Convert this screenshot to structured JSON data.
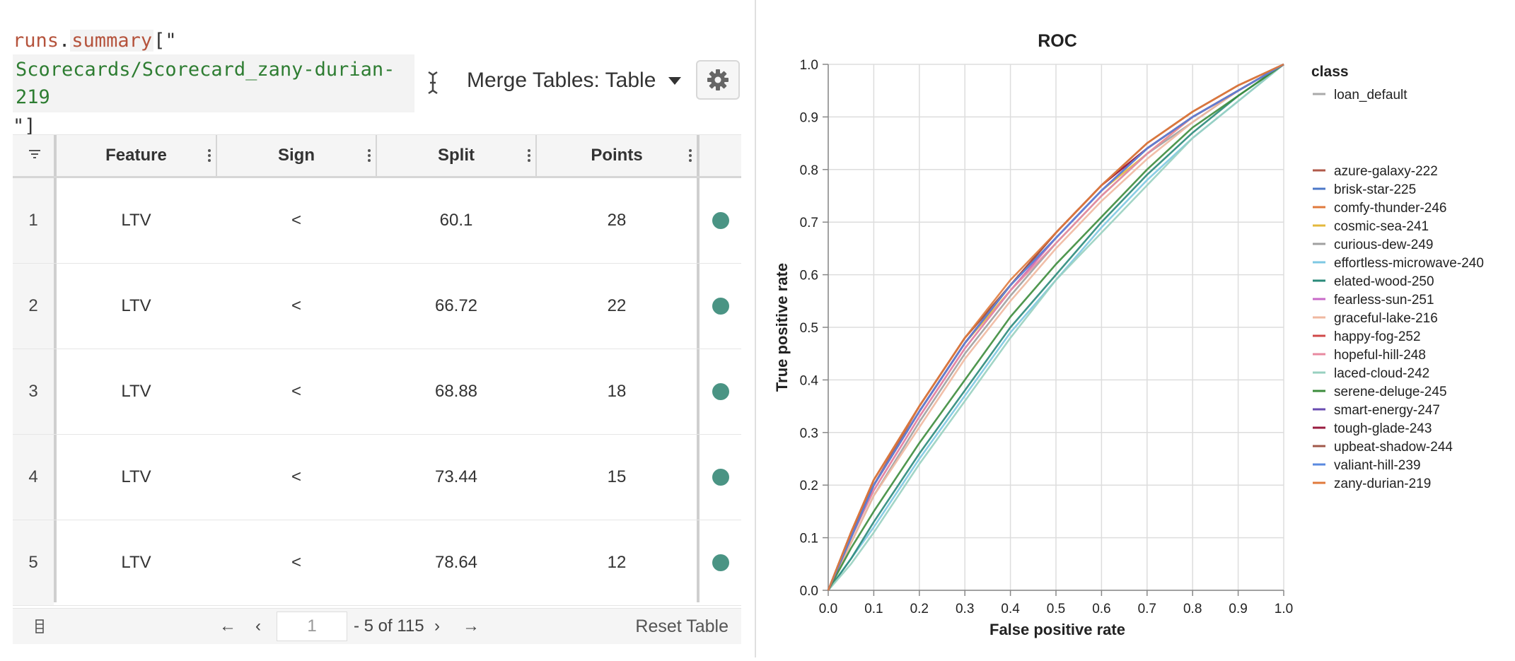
{
  "query": {
    "prefix": "runs",
    "dot": ".",
    "attr": "summary",
    "open": "[\"",
    "key": "Scorecards/Scorecard_zany-durian-219",
    "close": "\"]"
  },
  "merge": {
    "label": "Merge Tables: Table"
  },
  "icons": {
    "settings": "gear-icon",
    "cursor": "text-cursor-icon",
    "filter": "filter-icon",
    "columns": "columns-icon"
  },
  "colors": {
    "dot": "#4a9484"
  },
  "table": {
    "headers": [
      "Feature",
      "Sign",
      "Split",
      "Points"
    ],
    "rows": [
      {
        "index": "1",
        "feature": "LTV",
        "sign": "<",
        "split": "60.1",
        "points": "28"
      },
      {
        "index": "2",
        "feature": "LTV",
        "sign": "<",
        "split": "66.72",
        "points": "22"
      },
      {
        "index": "3",
        "feature": "LTV",
        "sign": "<",
        "split": "68.88",
        "points": "18"
      },
      {
        "index": "4",
        "feature": "LTV",
        "sign": "<",
        "split": "73.44",
        "points": "15"
      },
      {
        "index": "5",
        "feature": "LTV",
        "sign": "<",
        "split": "78.64",
        "points": "12"
      }
    ]
  },
  "pagination": {
    "first": "←",
    "prev": "‹",
    "page": "1",
    "range": "- 5 of 115",
    "next": "›",
    "last": "→",
    "reset": "Reset Table"
  },
  "chart_data": {
    "type": "line",
    "title": "ROC",
    "xlabel": "False positive rate",
    "ylabel": "True positive rate",
    "xlim": [
      0,
      1
    ],
    "ylim": [
      0,
      1
    ],
    "xticks": [
      "0.0",
      "0.1",
      "0.2",
      "0.3",
      "0.4",
      "0.5",
      "0.6",
      "0.7",
      "0.8",
      "0.9",
      "1.0"
    ],
    "yticks": [
      "0.0",
      "0.1",
      "0.2",
      "0.3",
      "0.4",
      "0.5",
      "0.6",
      "0.7",
      "0.8",
      "0.9",
      "1.0"
    ],
    "grid": true,
    "legend_position": "right",
    "legend_group_title": "class",
    "class_entry": {
      "name": "loan_default",
      "color": "#aaaaaa"
    },
    "series": [
      {
        "name": "azure-galaxy-222",
        "color": "#b05a4a",
        "x": [
          0,
          0.05,
          0.1,
          0.2,
          0.3,
          0.4,
          0.5,
          0.6,
          0.7,
          0.8,
          0.9,
          1.0
        ],
        "y": [
          0,
          0.11,
          0.2,
          0.35,
          0.48,
          0.58,
          0.68,
          0.77,
          0.84,
          0.9,
          0.95,
          1.0
        ]
      },
      {
        "name": "brisk-star-225",
        "color": "#4c78c8",
        "x": [
          0,
          0.05,
          0.1,
          0.2,
          0.3,
          0.4,
          0.5,
          0.6,
          0.7,
          0.8,
          0.9,
          1.0
        ],
        "y": [
          0,
          0.1,
          0.2,
          0.34,
          0.47,
          0.58,
          0.67,
          0.76,
          0.84,
          0.9,
          0.95,
          1.0
        ]
      },
      {
        "name": "comfy-thunder-246",
        "color": "#e07a3c",
        "x": [
          0,
          0.05,
          0.1,
          0.2,
          0.3,
          0.4,
          0.5,
          0.6,
          0.7,
          0.8,
          0.9,
          1.0
        ],
        "y": [
          0,
          0.11,
          0.21,
          0.35,
          0.48,
          0.58,
          0.68,
          0.77,
          0.85,
          0.91,
          0.96,
          1.0
        ]
      },
      {
        "name": "cosmic-sea-241",
        "color": "#e3b83c",
        "x": [
          0,
          0.05,
          0.1,
          0.2,
          0.3,
          0.4,
          0.5,
          0.6,
          0.7,
          0.8,
          0.9,
          1.0
        ],
        "y": [
          0,
          0.1,
          0.2,
          0.34,
          0.47,
          0.57,
          0.67,
          0.76,
          0.83,
          0.9,
          0.95,
          1.0
        ]
      },
      {
        "name": "curious-dew-249",
        "color": "#a0a0a0",
        "x": [
          0,
          0.05,
          0.1,
          0.2,
          0.3,
          0.4,
          0.5,
          0.6,
          0.7,
          0.8,
          0.9,
          1.0
        ],
        "y": [
          0,
          0.09,
          0.18,
          0.32,
          0.45,
          0.56,
          0.66,
          0.75,
          0.83,
          0.89,
          0.95,
          1.0
        ]
      },
      {
        "name": "effortless-microwave-240",
        "color": "#7ec8e3",
        "x": [
          0,
          0.05,
          0.1,
          0.2,
          0.3,
          0.4,
          0.5,
          0.6,
          0.7,
          0.8,
          0.9,
          1.0
        ],
        "y": [
          0,
          0.06,
          0.12,
          0.25,
          0.37,
          0.49,
          0.59,
          0.69,
          0.78,
          0.86,
          0.93,
          1.0
        ]
      },
      {
        "name": "elated-wood-250",
        "color": "#2a8a7a",
        "x": [
          0,
          0.05,
          0.1,
          0.2,
          0.3,
          0.4,
          0.5,
          0.6,
          0.7,
          0.8,
          0.9,
          1.0
        ],
        "y": [
          0,
          0.06,
          0.13,
          0.26,
          0.38,
          0.5,
          0.6,
          0.7,
          0.79,
          0.87,
          0.94,
          1.0
        ]
      },
      {
        "name": "fearless-sun-251",
        "color": "#c86ac8",
        "x": [
          0,
          0.05,
          0.1,
          0.2,
          0.3,
          0.4,
          0.5,
          0.6,
          0.7,
          0.8,
          0.9,
          1.0
        ],
        "y": [
          0,
          0.1,
          0.19,
          0.33,
          0.46,
          0.57,
          0.67,
          0.76,
          0.84,
          0.9,
          0.95,
          1.0
        ]
      },
      {
        "name": "graceful-lake-216",
        "color": "#f0b8a0",
        "x": [
          0,
          0.05,
          0.1,
          0.2,
          0.3,
          0.4,
          0.5,
          0.6,
          0.7,
          0.8,
          0.9,
          1.0
        ],
        "y": [
          0,
          0.09,
          0.18,
          0.31,
          0.44,
          0.55,
          0.65,
          0.74,
          0.82,
          0.89,
          0.95,
          1.0
        ]
      },
      {
        "name": "happy-fog-252",
        "color": "#d04848",
        "x": [
          0,
          0.05,
          0.1,
          0.2,
          0.3,
          0.4,
          0.5,
          0.6,
          0.7,
          0.8,
          0.9,
          1.0
        ],
        "y": [
          0,
          0.1,
          0.2,
          0.34,
          0.47,
          0.58,
          0.67,
          0.76,
          0.84,
          0.9,
          0.95,
          1.0
        ]
      },
      {
        "name": "hopeful-hill-248",
        "color": "#e88aa0",
        "x": [
          0,
          0.05,
          0.1,
          0.2,
          0.3,
          0.4,
          0.5,
          0.6,
          0.7,
          0.8,
          0.9,
          1.0
        ],
        "y": [
          0,
          0.1,
          0.19,
          0.33,
          0.46,
          0.57,
          0.66,
          0.75,
          0.83,
          0.9,
          0.95,
          1.0
        ]
      },
      {
        "name": "laced-cloud-242",
        "color": "#98d0c0",
        "x": [
          0,
          0.05,
          0.1,
          0.2,
          0.3,
          0.4,
          0.5,
          0.6,
          0.7,
          0.8,
          0.9,
          1.0
        ],
        "y": [
          0,
          0.05,
          0.11,
          0.24,
          0.36,
          0.48,
          0.59,
          0.68,
          0.77,
          0.86,
          0.93,
          1.0
        ]
      },
      {
        "name": "serene-deluge-245",
        "color": "#3c8c3c",
        "x": [
          0,
          0.05,
          0.1,
          0.2,
          0.3,
          0.4,
          0.5,
          0.6,
          0.7,
          0.8,
          0.9,
          1.0
        ],
        "y": [
          0,
          0.08,
          0.15,
          0.28,
          0.4,
          0.52,
          0.62,
          0.71,
          0.8,
          0.88,
          0.94,
          1.0
        ]
      },
      {
        "name": "smart-energy-247",
        "color": "#6a4cb0",
        "x": [
          0,
          0.05,
          0.1,
          0.2,
          0.3,
          0.4,
          0.5,
          0.6,
          0.7,
          0.8,
          0.9,
          1.0
        ],
        "y": [
          0,
          0.1,
          0.2,
          0.34,
          0.47,
          0.58,
          0.67,
          0.76,
          0.84,
          0.9,
          0.95,
          1.0
        ]
      },
      {
        "name": "tough-glade-243",
        "color": "#9a1c40",
        "x": [
          0,
          0.05,
          0.1,
          0.2,
          0.3,
          0.4,
          0.5,
          0.6,
          0.7,
          0.8,
          0.9,
          1.0
        ],
        "y": [
          0,
          0.1,
          0.2,
          0.34,
          0.47,
          0.58,
          0.68,
          0.77,
          0.84,
          0.9,
          0.95,
          1.0
        ]
      },
      {
        "name": "upbeat-shadow-244",
        "color": "#a0584a",
        "x": [
          0,
          0.05,
          0.1,
          0.2,
          0.3,
          0.4,
          0.5,
          0.6,
          0.7,
          0.8,
          0.9,
          1.0
        ],
        "y": [
          0,
          0.11,
          0.21,
          0.35,
          0.48,
          0.58,
          0.68,
          0.77,
          0.85,
          0.91,
          0.96,
          1.0
        ]
      },
      {
        "name": "valiant-hill-239",
        "color": "#5a8ae0",
        "x": [
          0,
          0.05,
          0.1,
          0.2,
          0.3,
          0.4,
          0.5,
          0.6,
          0.7,
          0.8,
          0.9,
          1.0
        ],
        "y": [
          0,
          0.1,
          0.2,
          0.34,
          0.47,
          0.58,
          0.67,
          0.76,
          0.84,
          0.9,
          0.95,
          1.0
        ]
      },
      {
        "name": "zany-durian-219",
        "color": "#e07a3c",
        "x": [
          0,
          0.05,
          0.1,
          0.2,
          0.3,
          0.4,
          0.5,
          0.6,
          0.7,
          0.8,
          0.9,
          1.0
        ],
        "y": [
          0,
          0.11,
          0.21,
          0.35,
          0.48,
          0.59,
          0.68,
          0.77,
          0.85,
          0.91,
          0.96,
          1.0
        ]
      }
    ]
  }
}
